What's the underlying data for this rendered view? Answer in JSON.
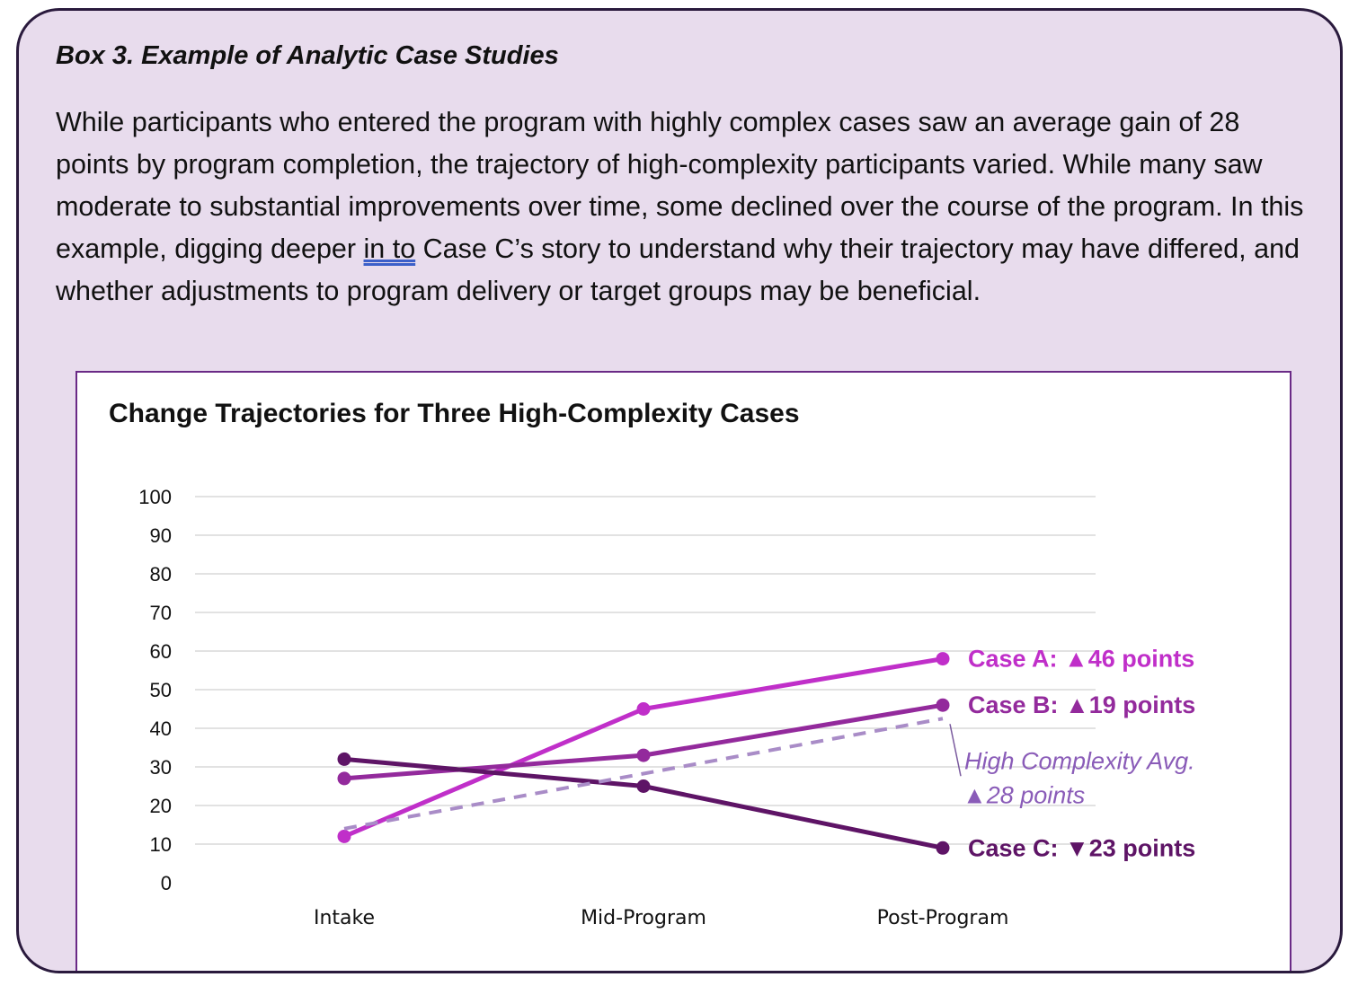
{
  "box": {
    "title": "Box 3. Example of Analytic Case Studies",
    "text_before": "While participants who entered the program with highly complex cases saw an average gain of 28 points by program completion, the trajectory of high-complexity participants varied. While many saw moderate to substantial improvements over time, some declined over the course of the program. In this example, digging deeper ",
    "text_underlined": "in to",
    "text_after": " Case C’s story to understand why their trajectory may have differed, and whether adjustments to program delivery or target groups may be beneficial."
  },
  "colors": {
    "box_background": "#e8dced",
    "box_border": "#2a1a3d",
    "case_a": "#c02fc9",
    "case_b": "#932a9c",
    "case_c": "#5e1466",
    "average": "#a98cc7",
    "gridline": "#d9d9d9"
  },
  "chart_data": {
    "type": "line",
    "title": "Change Trajectories for Three High-Complexity Cases",
    "xlabel": "",
    "ylabel": "",
    "categories": [
      "Intake",
      "Mid-Program",
      "Post-Program"
    ],
    "ylim": [
      0,
      100
    ],
    "yticks": [
      0,
      10,
      20,
      30,
      40,
      50,
      60,
      70,
      80,
      90,
      100
    ],
    "grid": true,
    "legend": "none",
    "series": [
      {
        "name": "Case A",
        "label": "Case A: ▲46 points",
        "color": "#c02fc9",
        "dashed": false,
        "markers": true,
        "values": [
          12,
          45,
          58
        ]
      },
      {
        "name": "Case B",
        "label": "Case B:  ▲19 points",
        "color": "#932a9c",
        "dashed": false,
        "markers": true,
        "values": [
          27,
          33,
          46
        ]
      },
      {
        "name": "Case C",
        "label": "Case C: ▼23 points",
        "color": "#5e1466",
        "dashed": false,
        "markers": true,
        "values": [
          32,
          25,
          9
        ]
      },
      {
        "name": "High Complexity Avg.",
        "label_line1": "High Complexity Avg.",
        "label_line2": "▲28 points",
        "color": "#a98cc7",
        "dashed": true,
        "markers": false,
        "values": [
          14,
          null,
          42.5
        ]
      }
    ]
  }
}
